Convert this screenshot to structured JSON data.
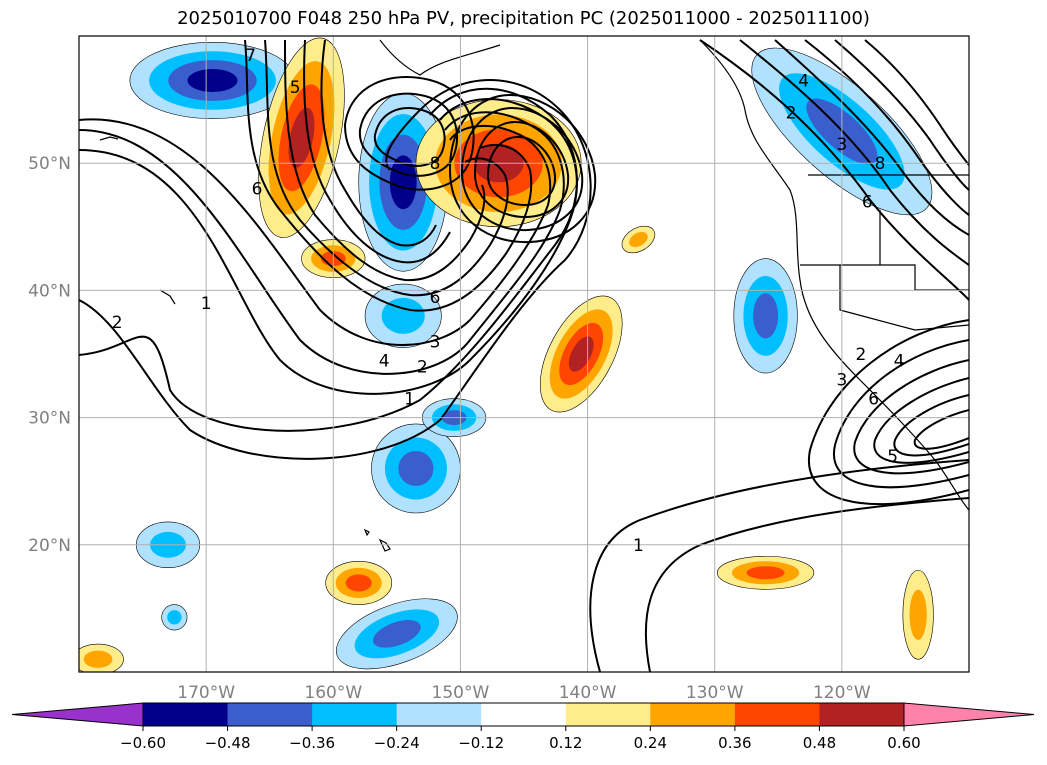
{
  "chart_data": {
    "type": "contour-map",
    "title": "2025010700 F048 250 hPa PV, precipitation PC (2025011000 - 2025011100)",
    "projection": "lat-lon",
    "lon_range": [
      -180,
      -110
    ],
    "lat_range": [
      10,
      60
    ],
    "grid": true,
    "xticks": [
      {
        "lon": -170,
        "label": "170°W"
      },
      {
        "lon": -160,
        "label": "160°W"
      },
      {
        "lon": -150,
        "label": "150°W"
      },
      {
        "lon": -140,
        "label": "140°W"
      },
      {
        "lon": -130,
        "label": "130°W"
      },
      {
        "lon": -120,
        "label": "120°W"
      }
    ],
    "yticks": [
      {
        "lat": 20,
        "label": "20°N"
      },
      {
        "lat": 30,
        "label": "30°N"
      },
      {
        "lat": 40,
        "label": "40°N"
      },
      {
        "lat": 50,
        "label": "50°N"
      }
    ],
    "tick_label_color": "#808080",
    "colorbar": {
      "orientation": "horizontal",
      "extend": "both",
      "ticks": [
        "−0.60",
        "−0.48",
        "−0.36",
        "−0.24",
        "−0.12",
        "0.12",
        "0.24",
        "0.36",
        "0.48",
        "0.60"
      ],
      "levels": [
        -0.6,
        -0.48,
        -0.36,
        -0.24,
        -0.12,
        0.12,
        0.24,
        0.36,
        0.48,
        0.6
      ],
      "colors": [
        "#9932cc",
        "#00008b",
        "#3a5fcd",
        "#00bfff",
        "#b0e2ff",
        "#ffffff",
        "#ffec8b",
        "#ffa500",
        "#ff4500",
        "#b22222",
        "#ff82ab"
      ]
    },
    "contour_levels": [
      1,
      2,
      3,
      4,
      5,
      6,
      7,
      8
    ],
    "contour_labels": [
      {
        "text": "1",
        "lon": -170,
        "lat": 39
      },
      {
        "text": "2",
        "lon": -177,
        "lat": 37.5
      },
      {
        "text": "7",
        "lon": -166.5,
        "lat": 58.5
      },
      {
        "text": "5",
        "lon": -163,
        "lat": 56
      },
      {
        "text": "6",
        "lon": -166,
        "lat": 48
      },
      {
        "text": "8",
        "lon": -152,
        "lat": 50
      },
      {
        "text": "6",
        "lon": -152,
        "lat": 39.5
      },
      {
        "text": "4",
        "lon": -156,
        "lat": 34.5
      },
      {
        "text": "3",
        "lon": -152,
        "lat": 36
      },
      {
        "text": "2",
        "lon": -153,
        "lat": 34
      },
      {
        "text": "1",
        "lon": -154,
        "lat": 31.5
      },
      {
        "text": "1",
        "lon": -136,
        "lat": 20
      },
      {
        "text": "4",
        "lon": -123,
        "lat": 56.5
      },
      {
        "text": "2",
        "lon": -124,
        "lat": 54
      },
      {
        "text": "3",
        "lon": -120,
        "lat": 51.5
      },
      {
        "text": "8",
        "lon": -117,
        "lat": 50
      },
      {
        "text": "6",
        "lon": -118,
        "lat": 47
      },
      {
        "text": "2",
        "lon": -118.5,
        "lat": 35
      },
      {
        "text": "4",
        "lon": -115.5,
        "lat": 34.5
      },
      {
        "text": "3",
        "lon": -120,
        "lat": 33
      },
      {
        "text": "6",
        "lon": -117.5,
        "lat": 31.5
      },
      {
        "text": "5",
        "lon": -116,
        "lat": 27
      }
    ],
    "shaded_regions": [
      {
        "lon": -169.5,
        "lat": 56.5,
        "rx": 6.5,
        "ry": 3,
        "rot": 0,
        "levels": [
          -0.12,
          -0.24,
          -0.36,
          -0.48
        ]
      },
      {
        "lon": -154.5,
        "lat": 48.5,
        "rx": 3.5,
        "ry": 7,
        "rot": 0,
        "levels": [
          -0.12,
          -0.24,
          -0.36,
          -0.48
        ]
      },
      {
        "lon": -154.5,
        "lat": 38,
        "rx": 3,
        "ry": 2.5,
        "rot": 0,
        "levels": [
          -0.12,
          -0.24
        ]
      },
      {
        "lon": -153.5,
        "lat": 26,
        "rx": 3.5,
        "ry": 3.5,
        "rot": 0,
        "levels": [
          -0.12,
          -0.24,
          -0.36
        ]
      },
      {
        "lon": -150.5,
        "lat": 30,
        "rx": 2.5,
        "ry": 1.5,
        "rot": 0,
        "levels": [
          -0.12,
          -0.24,
          -0.36
        ]
      },
      {
        "lon": -173,
        "lat": 20,
        "rx": 2.5,
        "ry": 1.8,
        "rot": 0,
        "levels": [
          -0.12,
          -0.24
        ]
      },
      {
        "lon": -172.5,
        "lat": 14.3,
        "rx": 1,
        "ry": 1,
        "rot": 0,
        "levels": [
          -0.12,
          -0.24
        ]
      },
      {
        "lon": -155,
        "lat": 13,
        "rx": 5,
        "ry": 2.3,
        "rot": -20,
        "levels": [
          -0.12,
          -0.24,
          -0.36
        ]
      },
      {
        "lon": -126,
        "lat": 38,
        "rx": 2.5,
        "ry": 4.5,
        "rot": 0,
        "levels": [
          -0.12,
          -0.24,
          -0.36
        ]
      },
      {
        "lon": -120,
        "lat": 52.5,
        "rx": 9,
        "ry": 3.5,
        "rot": 42,
        "levels": [
          -0.12,
          -0.24,
          -0.36
        ]
      },
      {
        "lon": -162.5,
        "lat": 52,
        "rx": 3,
        "ry": 8,
        "rot": 12,
        "levels": [
          0.12,
          0.24,
          0.36,
          0.48
        ]
      },
      {
        "lon": -160,
        "lat": 42.5,
        "rx": 2.5,
        "ry": 1.5,
        "rot": 0,
        "levels": [
          0.12,
          0.24,
          0.36
        ]
      },
      {
        "lon": -147,
        "lat": 50,
        "rx": 6.5,
        "ry": 5,
        "rot": 0,
        "levels": [
          0.12,
          0.24,
          0.36,
          0.48
        ]
      },
      {
        "lon": -140.5,
        "lat": 35,
        "rx": 2.5,
        "ry": 5,
        "rot": 28,
        "levels": [
          0.12,
          0.24,
          0.36,
          0.48
        ]
      },
      {
        "lon": -136,
        "lat": 44,
        "rx": 1.4,
        "ry": 0.9,
        "rot": -30,
        "levels": [
          0.12,
          0.24
        ]
      },
      {
        "lon": -126,
        "lat": 17.8,
        "rx": 3.8,
        "ry": 1.3,
        "rot": 0,
        "levels": [
          0.12,
          0.24,
          0.36
        ]
      },
      {
        "lon": -158,
        "lat": 17,
        "rx": 2.6,
        "ry": 1.7,
        "rot": 0,
        "levels": [
          0.12,
          0.24,
          0.36
        ]
      },
      {
        "lon": -114,
        "lat": 14.5,
        "rx": 1.2,
        "ry": 3.5,
        "rot": 0,
        "levels": [
          0.12,
          0.24
        ]
      },
      {
        "lon": -178.5,
        "lat": 11,
        "rx": 2,
        "ry": 1.2,
        "rot": 0,
        "levels": [
          0.12,
          0.24
        ]
      }
    ]
  }
}
